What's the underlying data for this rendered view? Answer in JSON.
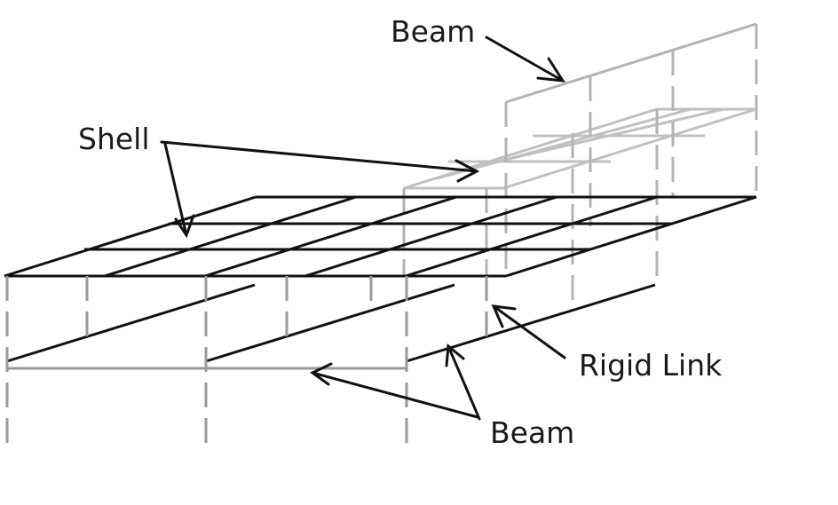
{
  "labels": {
    "beam_top": "Beam",
    "shell": "Shell",
    "rigid_link": "Rigid Link",
    "beam_bottom": "Beam"
  },
  "colors": {
    "dark": "#111111",
    "light": "#b3b3b3",
    "mid": "#9a9a9a"
  }
}
